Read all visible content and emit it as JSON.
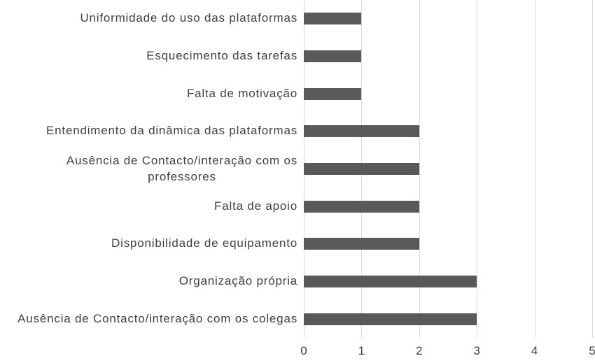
{
  "chart_data": {
    "type": "bar",
    "orientation": "horizontal",
    "title": "",
    "xlabel": "",
    "ylabel": "",
    "categories": [
      "Uniformidade do uso das plataformas",
      "Esquecimento das tarefas",
      "Falta de motivação",
      "Entendimento da dinâmica das plataformas",
      "Ausência de Contacto/interação com os\nprofessores",
      "Falta de apoio",
      "Disponibilidade de equipamento",
      "Organização própria",
      "Ausência de Contacto/interação com os colegas"
    ],
    "values": [
      1,
      1,
      1,
      2,
      2,
      2,
      2,
      3,
      3
    ],
    "xlim": [
      0,
      5
    ],
    "xticks": [
      "0",
      "1",
      "2",
      "3",
      "4",
      "5"
    ],
    "grid": "vertical-gridlines-on",
    "legend": "none",
    "colors": {
      "bar": "#595959",
      "gridline": "#d9d9d9",
      "text": "#404040",
      "background": "#ffffff"
    }
  }
}
